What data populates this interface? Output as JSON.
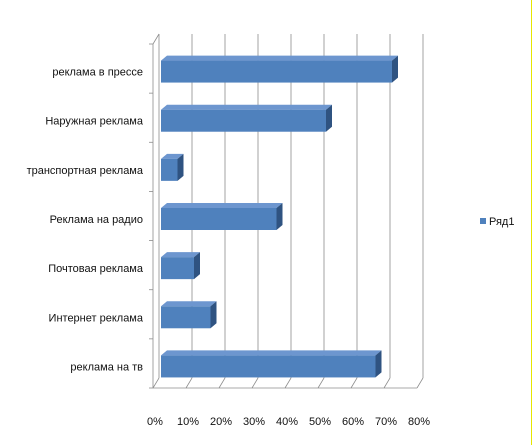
{
  "chart_data": {
    "type": "bar",
    "orientation": "horizontal",
    "style": "3d",
    "title": "",
    "xlabel": "",
    "ylabel": "",
    "categories": [
      "реклама в прессе",
      "Наружная реклама",
      "транспортная реклама",
      "Реклама на радио",
      "Почтовая реклама",
      "Интернет реклама",
      "реклама на тв"
    ],
    "series": [
      {
        "name": "Ряд1",
        "color": "#4f81bd",
        "values": [
          70,
          50,
          5,
          35,
          10,
          15,
          65
        ]
      }
    ],
    "xlim": [
      0,
      80
    ],
    "x_ticks": [
      "0%",
      "10%",
      "20%",
      "30%",
      "40%",
      "50%",
      "60%",
      "70%",
      "80%"
    ],
    "value_format": "percent",
    "grid": true,
    "legend": "right"
  },
  "colors": {
    "bar_front": "#4f81bd",
    "bar_top": "#6d96cf",
    "bar_side": "#2f5381",
    "grid": "#8c8c8c",
    "frame_edge": "#e6e600"
  }
}
